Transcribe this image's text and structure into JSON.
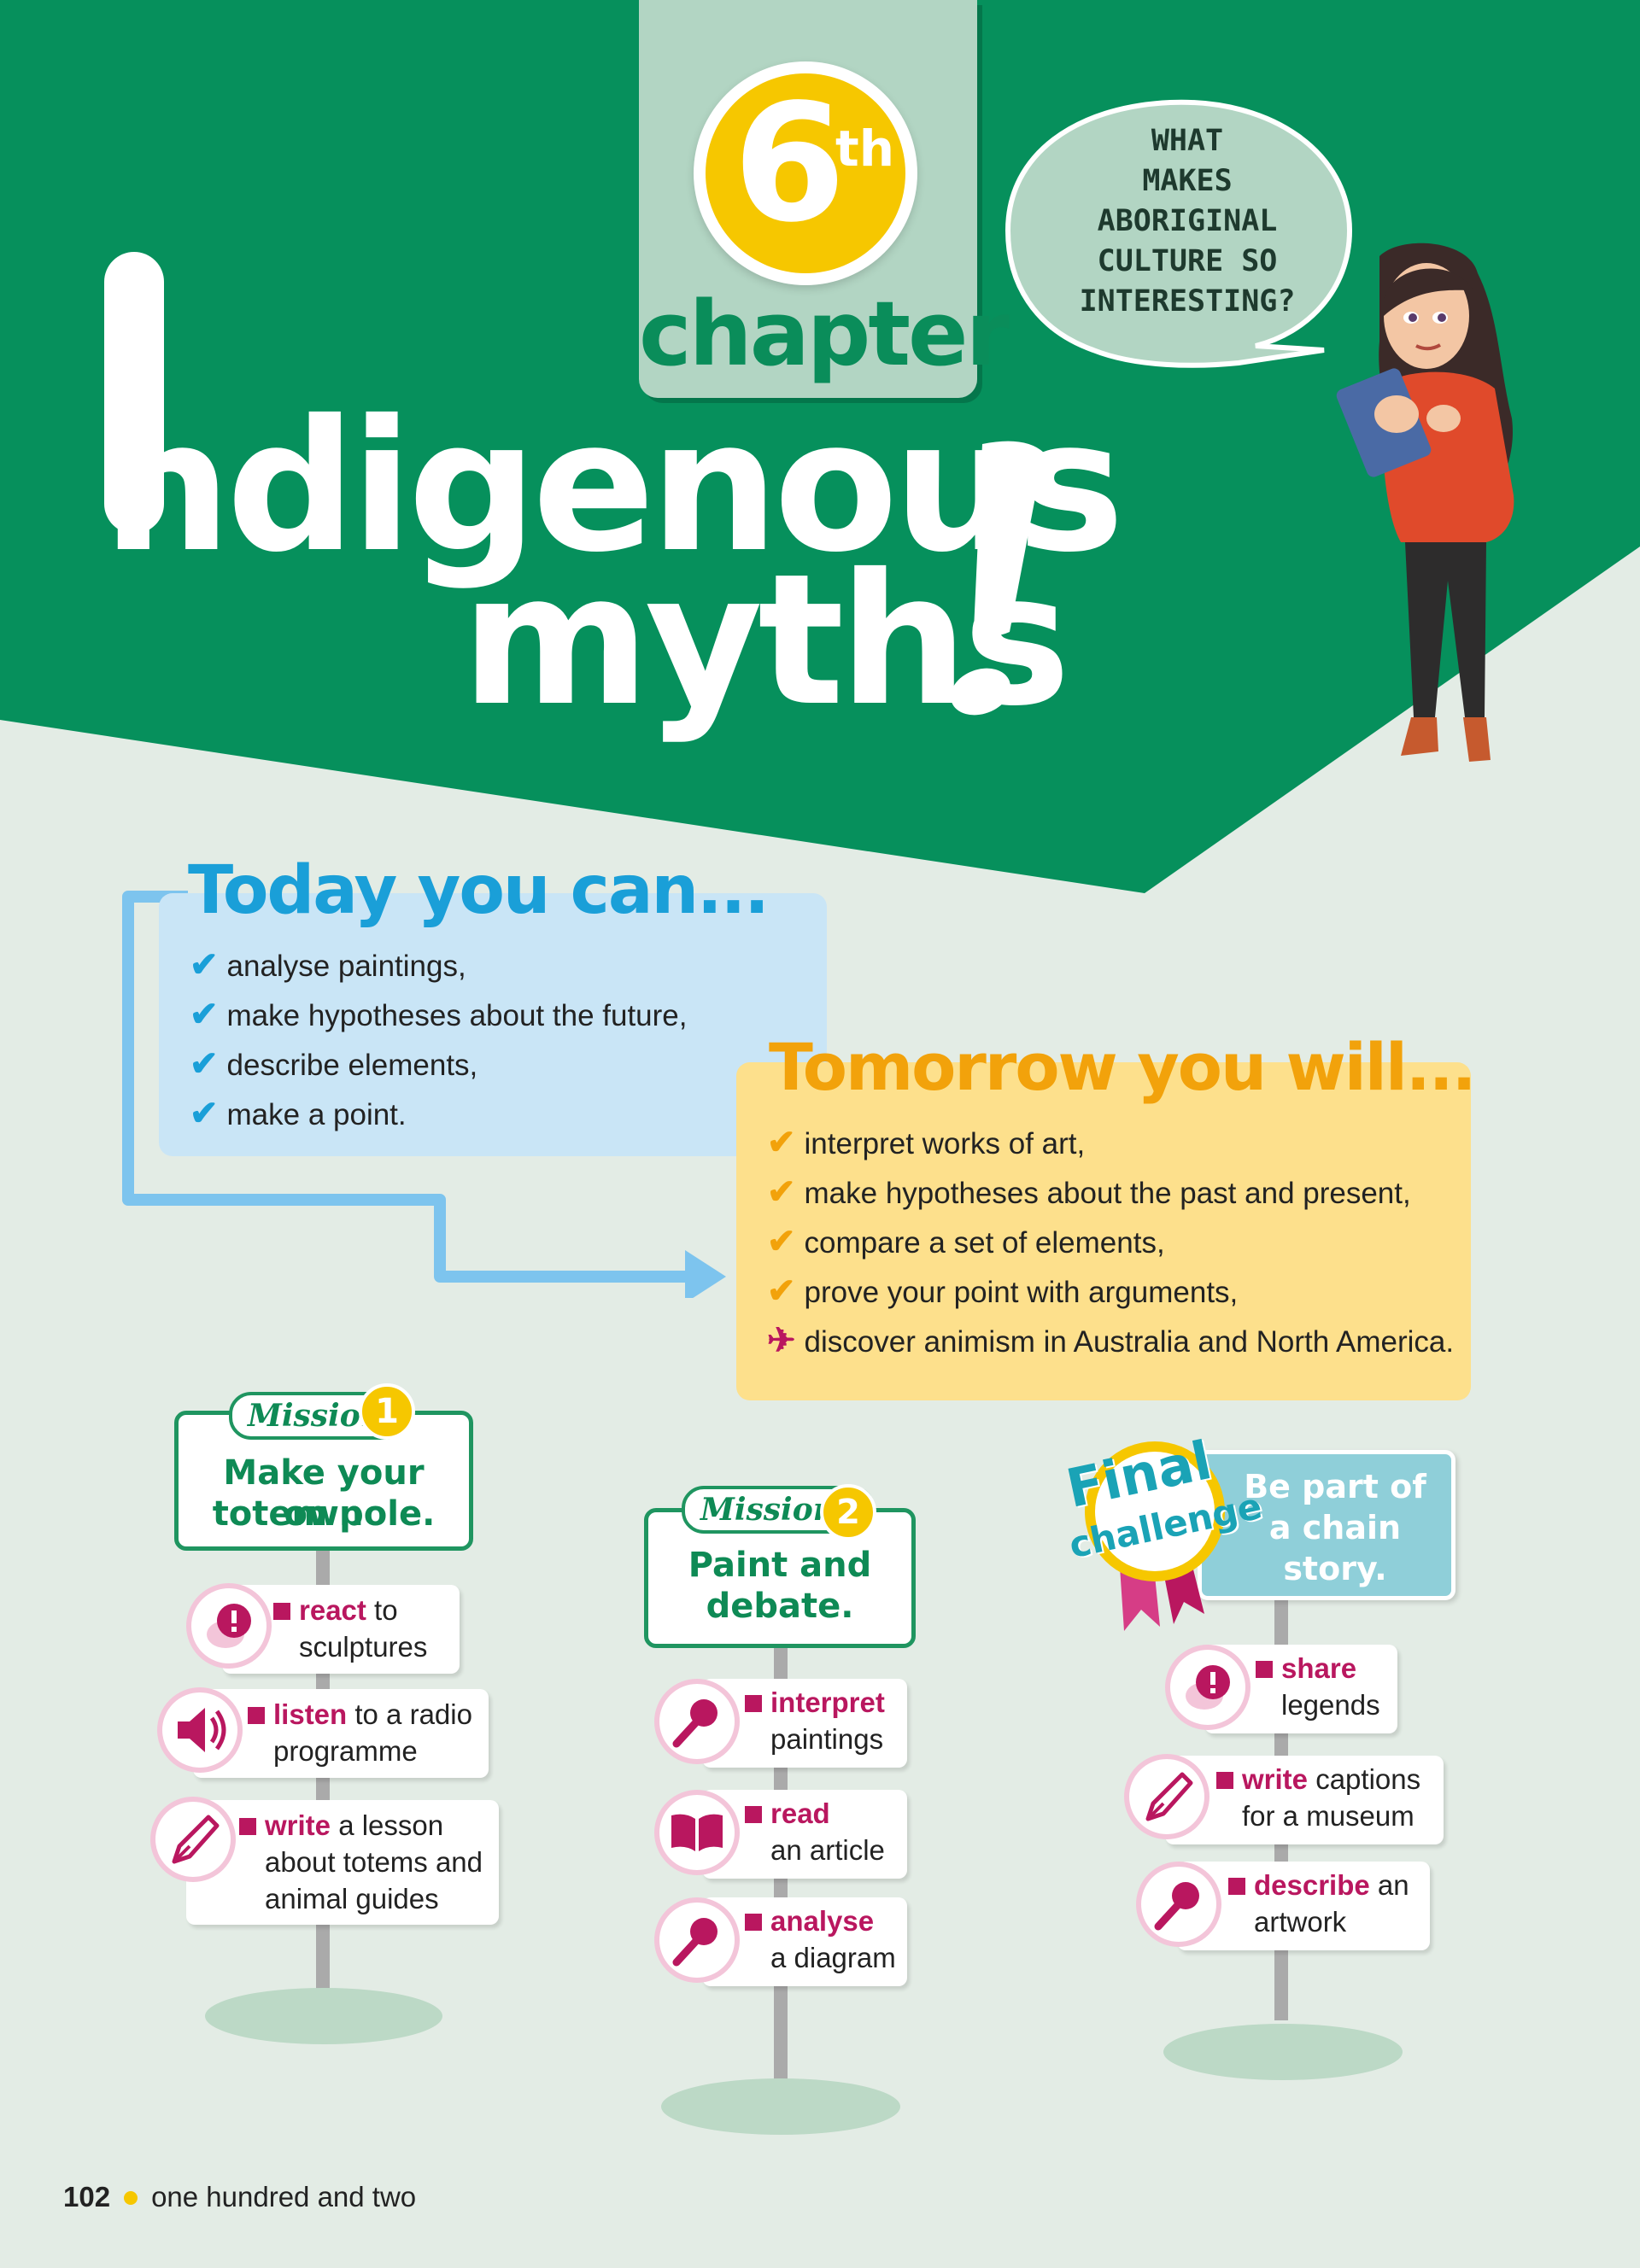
{
  "chapter": {
    "number": "6",
    "suffix": "th",
    "word": "chapter"
  },
  "title": {
    "line1": "ndigenous",
    "line2": "myths"
  },
  "speech_bubble": "WHAT\nMAKES\nABORIGINAL\nCULTURE SO\nINTERESTING?",
  "today": {
    "heading": "Today you can...",
    "items": [
      "analyse paintings,",
      "make hypotheses about the future,",
      "describe elements,",
      "make a point."
    ]
  },
  "tomorrow": {
    "heading": "Tomorrow you will...",
    "items": [
      "interpret works of art,",
      "make hypotheses about the past and present,",
      "compare a set of elements,",
      "prove your point with arguments,",
      "discover animism in Australia and North America."
    ]
  },
  "mission1": {
    "tag": "Mission",
    "number": "1",
    "title_line1": "Make your own",
    "title_line2": "totem pole.",
    "cards": [
      {
        "icon": "speech-alert-icon",
        "verb": "react",
        "rest1": " to",
        "rest2": "sculptures",
        "rest3": ""
      },
      {
        "icon": "speaker-icon",
        "verb": "listen",
        "rest1": " to a radio",
        "rest2": "programme",
        "rest3": ""
      },
      {
        "icon": "pen-nib-icon",
        "verb": "write",
        "rest1": " a lesson",
        "rest2": "about totems and",
        "rest3": "animal guides"
      }
    ]
  },
  "mission2": {
    "tag": "Mission",
    "number": "2",
    "title_line1": "Paint and",
    "title_line2": "debate.",
    "cards": [
      {
        "icon": "microphone-icon",
        "verb": "interpret",
        "rest1": "",
        "rest2": "paintings"
      },
      {
        "icon": "book-icon",
        "verb": "read",
        "rest1": "",
        "rest2": "an article"
      },
      {
        "icon": "microphone-icon",
        "verb": "analyse",
        "rest1": "",
        "rest2": "a diagram"
      }
    ]
  },
  "final": {
    "badge_line1": "Final",
    "badge_line2": "challenge",
    "title_line1": "Be part of",
    "title_line2": "a chain",
    "title_line3": "story.",
    "cards": [
      {
        "icon": "speech-alert-icon",
        "verb": "share",
        "rest1": "",
        "rest2": "legends"
      },
      {
        "icon": "pen-nib-icon",
        "verb": "write",
        "rest1": " captions",
        "rest2": "for a museum"
      },
      {
        "icon": "microphone-icon",
        "verb": "describe",
        "rest1": " an",
        "rest2": "artwork"
      }
    ]
  },
  "footer": {
    "page_number": "102",
    "page_words": "one hundred and two"
  },
  "colors": {
    "green": "#06905c",
    "pale_green": "#e3ece5",
    "blue": "#1a9fd8",
    "orange": "#f2a20b",
    "magenta": "#b9175f",
    "yellow": "#f6c700"
  }
}
